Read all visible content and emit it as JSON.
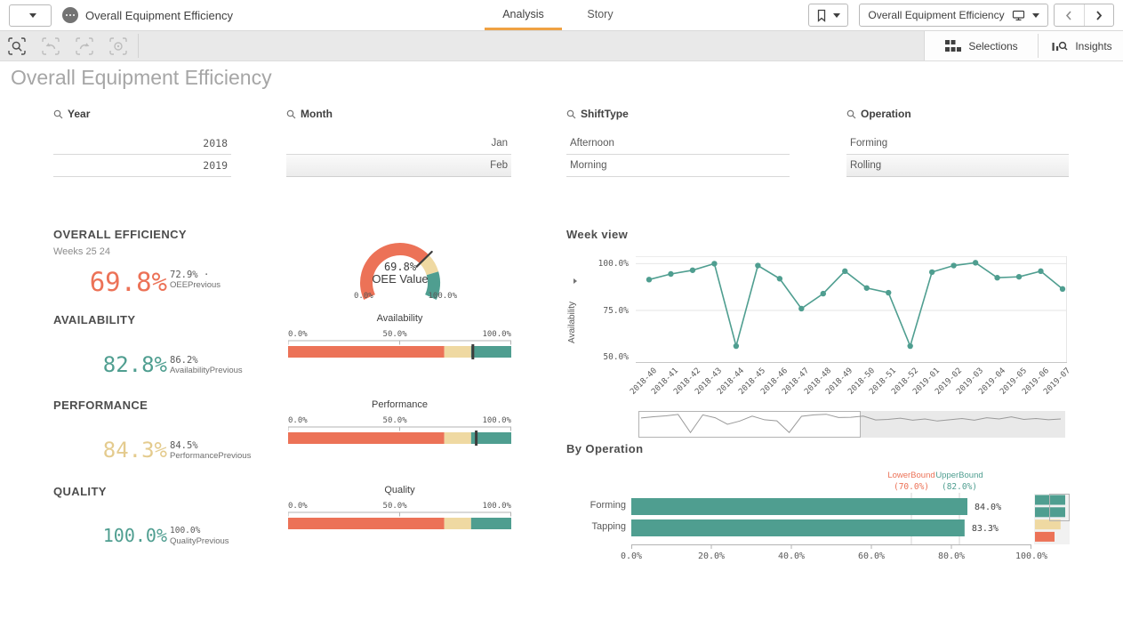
{
  "colors": {
    "salmon": "#EC7257",
    "cream": "#EFD9A2",
    "cream_text": "#E4CB8E",
    "teal": "#4F9E90",
    "accent_orange": "#EFA143",
    "dark": "#3d3d3d"
  },
  "header": {
    "app_title": "Overall Equipment Efficiency",
    "tabs": [
      {
        "label": "Analysis"
      },
      {
        "label": "Story"
      }
    ],
    "sheet_selector": "Overall Equipment Efficiency"
  },
  "toolbar": {
    "selections_label": "Selections",
    "insights_label": "Insights"
  },
  "page_title": "Overall Equipment Efficiency",
  "filters": [
    {
      "label": "Year",
      "align": "right",
      "numeric": true,
      "values": [
        {
          "text": "2018",
          "shaded": false
        },
        {
          "text": "2019",
          "shaded": false
        }
      ]
    },
    {
      "label": "Month",
      "align": "right",
      "numeric": false,
      "values": [
        {
          "text": "Jan",
          "shaded": false
        },
        {
          "text": "Feb",
          "shaded": true
        }
      ]
    },
    {
      "label": "ShiftType",
      "align": "left",
      "numeric": false,
      "values": [
        {
          "text": "Afternoon",
          "shaded": false
        },
        {
          "text": "Morning",
          "shaded": false
        }
      ]
    },
    {
      "label": "Operation",
      "align": "left",
      "numeric": false,
      "values": [
        {
          "text": "Forming",
          "shaded": false
        },
        {
          "text": "Rolling",
          "shaded": true
        }
      ]
    }
  ],
  "kpi_sections": [
    {
      "title": "OVERALL EFFICIENCY",
      "subtitle": "Weeks 25 24",
      "value": "69.8%",
      "value_color": "salmon",
      "prev_value": "72.9%",
      "prev_dot": "·",
      "prev_label": "OEEPrevious"
    },
    {
      "title": "AVAILABILITY",
      "value": "82.8%",
      "value_color": "teal",
      "prev_value": "86.2%",
      "prev_label": "AvailabilityPrevious"
    },
    {
      "title": "PERFORMANCE",
      "value": "84.3%",
      "value_color": "cream_text",
      "prev_value": "84.5%",
      "prev_label": "PerformancePrevious"
    },
    {
      "title": "QUALITY",
      "value": "100.0%",
      "value_color": "teal",
      "prev_value": "100.0%",
      "prev_label": "QualityPrevious"
    }
  ],
  "chart_data": [
    {
      "id": "oee-gauge",
      "type": "gauge",
      "center_value": "69.8%",
      "center_label": "OEE Value",
      "value": 69.8,
      "min": 0,
      "max": 100,
      "min_label": "0.0%",
      "max_label": "100.0%",
      "segments": [
        {
          "from": 0,
          "to": 70,
          "color_key": "salmon"
        },
        {
          "from": 70,
          "to": 82,
          "color_key": "cream"
        },
        {
          "from": 82,
          "to": 100,
          "color_key": "teal"
        }
      ]
    },
    {
      "id": "availability-bullet",
      "type": "bullet",
      "title": "Availability",
      "value": 82.8,
      "lower": 70,
      "upper": 82,
      "ticks": [
        "0.0%",
        "50.0%",
        "100.0%"
      ],
      "xlim": [
        0,
        100
      ]
    },
    {
      "id": "performance-bullet",
      "type": "bullet",
      "title": "Performance",
      "value": 84.3,
      "lower": 70,
      "upper": 82,
      "ticks": [
        "0.0%",
        "50.0%",
        "100.0%"
      ],
      "xlim": [
        0,
        100
      ]
    },
    {
      "id": "quality-bullet",
      "type": "bullet",
      "title": "Quality",
      "value": 100.0,
      "lower": 70,
      "upper": 82,
      "ticks": [
        "0.0%",
        "50.0%",
        "100.0%"
      ],
      "xlim": [
        0,
        100
      ]
    },
    {
      "id": "week-view-line",
      "type": "line",
      "title": "Week view",
      "ylabel": "Availability",
      "yticks": [
        {
          "label": "100.0%",
          "value": 100
        },
        {
          "label": "75.0%",
          "value": 75
        },
        {
          "label": "50.0%",
          "value": 50
        }
      ],
      "ylim": [
        47,
        104
      ],
      "categories": [
        "2018-40",
        "2018-41",
        "2018-42",
        "2018-43",
        "2018-44",
        "2018-45",
        "2018-46",
        "2018-47",
        "2018-48",
        "2018-49",
        "2018-50",
        "2018-51",
        "2018-52",
        "2019-01",
        "2019-02",
        "2019-03",
        "2019-04",
        "2019-05",
        "2019-06",
        "2019-07"
      ],
      "values": [
        91.5,
        94.5,
        96.5,
        100,
        56,
        99,
        92,
        76,
        84,
        96,
        87,
        84.5,
        56,
        95.5,
        99,
        100.5,
        92.5,
        93,
        96,
        86.5
      ]
    },
    {
      "id": "week-navigator",
      "type": "line-mini",
      "window_fraction": 0.52,
      "values": [
        91.5,
        94.5,
        96.5,
        100,
        56,
        99,
        92,
        76,
        84,
        96,
        87,
        84.5,
        56,
        95.5,
        99,
        100.5,
        92.5,
        93,
        96,
        86.5,
        88,
        91,
        86,
        89,
        84,
        87,
        90,
        86,
        92,
        89,
        94,
        88,
        90,
        87,
        89
      ]
    },
    {
      "id": "by-operation-bar",
      "type": "bar",
      "title": "By Operation",
      "categories": [
        "Forming",
        "Tapping"
      ],
      "values": [
        84.0,
        83.3
      ],
      "value_labels": [
        "84.0%",
        "83.3%"
      ],
      "xticks": [
        {
          "label": "0.0%",
          "value": 0
        },
        {
          "label": "20.0%",
          "value": 20
        },
        {
          "label": "40.0%",
          "value": 40
        },
        {
          "label": "60.0%",
          "value": 60
        },
        {
          "label": "80.0%",
          "value": 80
        },
        {
          "label": "100.0%",
          "value": 100
        }
      ],
      "xlim": [
        0,
        100
      ],
      "bar_color_key": "teal",
      "ref_lines": [
        {
          "label": "LowerBound",
          "value_label": "(70.0%)",
          "value": 70,
          "color_key": "salmon"
        },
        {
          "label": "UpperBound",
          "value_label": "(82.0%)",
          "value": 82,
          "color_key": "teal"
        }
      ],
      "mini_navigator": {
        "bars": [
          {
            "color_key": "teal",
            "w": 0.85
          },
          {
            "color_key": "teal",
            "w": 0.85
          },
          {
            "color_key": "cream",
            "w": 0.72
          },
          {
            "color_key": "salmon",
            "w": 0.55
          }
        ]
      }
    }
  ]
}
